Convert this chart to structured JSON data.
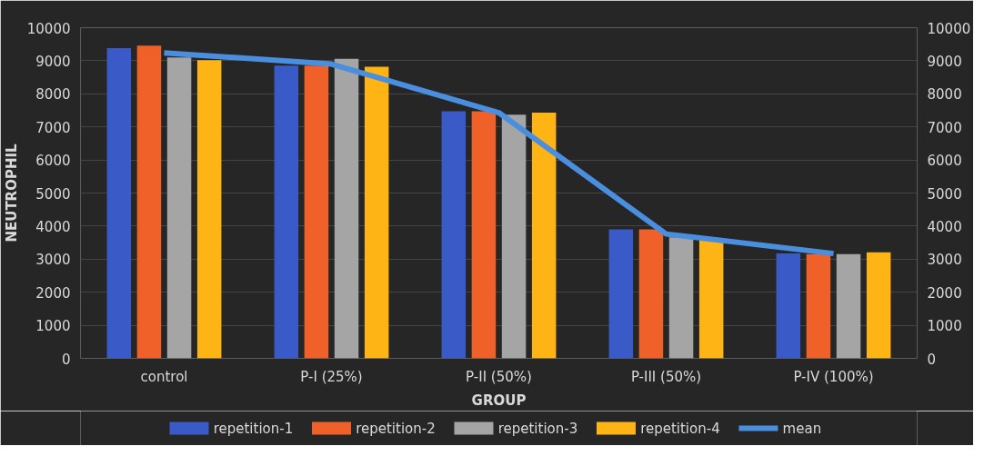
{
  "chart_data": {
    "type": "bar",
    "xlabel": "GROUP",
    "ylabel": "NEUTROPHIL",
    "categories": [
      "control",
      "P-I (25%)",
      "P-II (50%)",
      "P-III (50%)",
      "P-IV (100%)"
    ],
    "series": [
      {
        "name": "repetition-1",
        "color": "#3a5bc7",
        "values": [
          9380,
          8850,
          7470,
          3900,
          3170
        ]
      },
      {
        "name": "repetition-2",
        "color": "#f0612a",
        "values": [
          9460,
          8850,
          7470,
          3900,
          3150
        ]
      },
      {
        "name": "repetition-3",
        "color": "#a5a5a5",
        "values": [
          9100,
          9060,
          7370,
          3660,
          3150
        ]
      },
      {
        "name": "repetition-4",
        "color": "#ffb415",
        "values": [
          9020,
          8820,
          7430,
          3570,
          3210
        ]
      },
      {
        "name": "mean",
        "type": "line",
        "axis": "y2",
        "color": "#4a8fdf",
        "values": [
          9240,
          8900,
          7430,
          3760,
          3170
        ]
      }
    ],
    "ylim": [
      0,
      10000
    ],
    "yticks": [
      0,
      1000,
      2000,
      3000,
      4000,
      5000,
      6000,
      7000,
      8000,
      9000,
      10000
    ],
    "y2lim": [
      0,
      10000
    ],
    "y2ticks": [
      0,
      1000,
      2000,
      3000,
      4000,
      5000,
      6000,
      7000,
      8000,
      9000,
      10000
    ],
    "grid": "y",
    "legend": "bottom"
  }
}
